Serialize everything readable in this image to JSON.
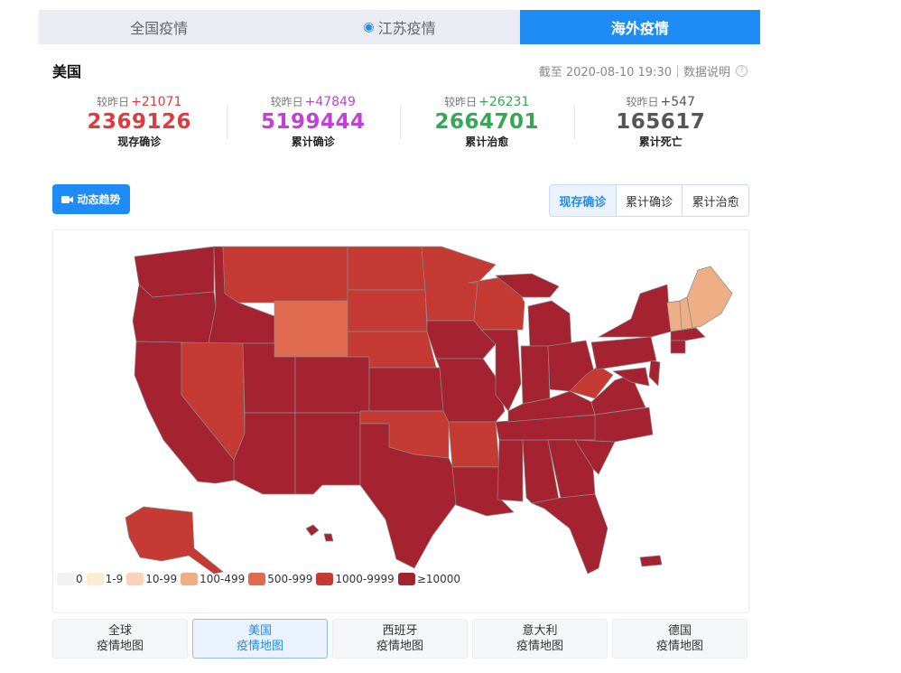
{
  "tabs": [
    {
      "label": "全国疫情"
    },
    {
      "label": "江苏疫情"
    },
    {
      "label": "海外疫情"
    }
  ],
  "country": "美国",
  "as_of": "截至 2020-08-10 19:30",
  "data_note": "数据说明",
  "delta_prefix": "较昨日",
  "stats": [
    {
      "delta": "+21071",
      "value": "2369126",
      "name": "现存确诊",
      "color": "#e3393c"
    },
    {
      "delta": "+47849",
      "value": "5199444",
      "name": "累计确诊",
      "color": "#c140d8"
    },
    {
      "delta": "+26231",
      "value": "2664701",
      "name": "累计治愈",
      "color": "#34a853"
    },
    {
      "delta": "+547",
      "value": "165617",
      "name": "累计死亡",
      "color": "#555555"
    }
  ],
  "trend_button": "动态趋势",
  "metric_tabs": [
    {
      "label": "现存确诊"
    },
    {
      "label": "累计确诊"
    },
    {
      "label": "累计治愈"
    }
  ],
  "legend": [
    {
      "label": "0",
      "color": "#f2f2f2"
    },
    {
      "label": "1-9",
      "color": "#fdecd2"
    },
    {
      "label": "10-99",
      "color": "#f8d3b8"
    },
    {
      "label": "100-499",
      "color": "#eeae86"
    },
    {
      "label": "500-999",
      "color": "#df6a4f"
    },
    {
      "label": "1000-9999",
      "color": "#c53a32"
    },
    {
      "label": "≥10000",
      "color": "#a52330"
    }
  ],
  "bottom_tabs": [
    {
      "line1": "全球",
      "line2": "疫情地图"
    },
    {
      "line1": "美国",
      "line2": "疫情地图"
    },
    {
      "line1": "西班牙",
      "line2": "疫情地图"
    },
    {
      "line1": "意大利",
      "line2": "疫情地图"
    },
    {
      "line1": "德国",
      "line2": "疫情地图"
    }
  ]
}
